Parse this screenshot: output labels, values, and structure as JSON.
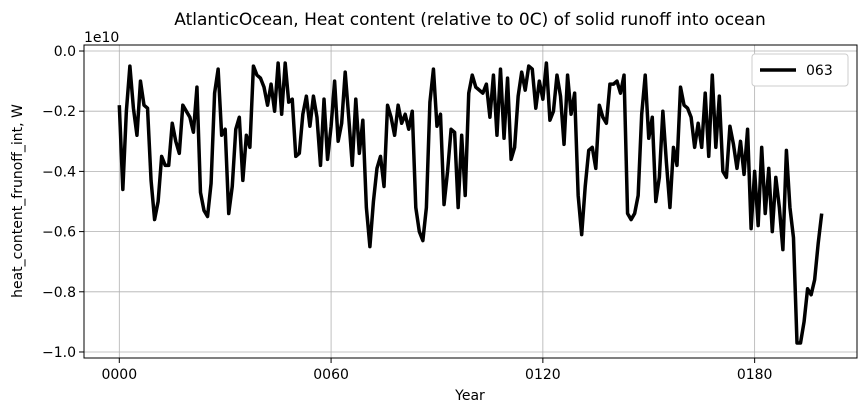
{
  "chart_data": {
    "type": "line",
    "title": "AtlanticOcean, Heat content (relative to 0C) of solid runoff into ocean",
    "xlabel": "Year",
    "ylabel": "heat_content_frunoff_int, W",
    "offset_text": "1e10",
    "x_ticks": [
      0,
      60,
      120,
      180
    ],
    "x_tick_labels": [
      "0000",
      "0060",
      "0120",
      "0180"
    ],
    "y_ticks": [
      0.0,
      -0.2,
      -0.4,
      -0.6,
      -0.8,
      -1.0
    ],
    "y_tick_labels": [
      "0.0",
      "−0.2",
      "−0.4",
      "−0.6",
      "−0.8",
      "−1.0"
    ],
    "xlim": [
      -10,
      209
    ],
    "ylim": [
      -1.02,
      0.02
    ],
    "grid": true,
    "legend_position": "top-right",
    "series": [
      {
        "name": "063",
        "color": "#000000",
        "x": [
          0,
          1,
          2,
          3,
          4,
          5,
          6,
          7,
          8,
          9,
          10,
          11,
          12,
          13,
          14,
          15,
          16,
          17,
          18,
          19,
          20,
          21,
          22,
          23,
          24,
          25,
          26,
          27,
          28,
          29,
          30,
          31,
          32,
          33,
          34,
          35,
          36,
          37,
          38,
          39,
          40,
          41,
          42,
          43,
          44,
          45,
          46,
          47,
          48,
          49,
          50,
          51,
          52,
          53,
          54,
          55,
          56,
          57,
          58,
          59,
          60,
          61,
          62,
          63,
          64,
          65,
          66,
          67,
          68,
          69,
          70,
          71,
          72,
          73,
          74,
          75,
          76,
          77,
          78,
          79,
          80,
          81,
          82,
          83,
          84,
          85,
          86,
          87,
          88,
          89,
          90,
          91,
          92,
          93,
          94,
          95,
          96,
          97,
          98,
          99,
          100,
          101,
          102,
          103,
          104,
          105,
          106,
          107,
          108,
          109,
          110,
          111,
          112,
          113,
          114,
          115,
          116,
          117,
          118,
          119,
          120,
          121,
          122,
          123,
          124,
          125,
          126,
          127,
          128,
          129,
          130,
          131,
          132,
          133,
          134,
          135,
          136,
          137,
          138,
          139,
          140,
          141,
          142,
          143,
          144,
          145,
          146,
          147,
          148,
          149,
          150,
          151,
          152,
          153,
          154,
          155,
          156,
          157,
          158,
          159,
          160,
          161,
          162,
          163,
          164,
          165,
          166,
          167,
          168,
          169,
          170,
          171,
          172,
          173,
          174,
          175,
          176,
          177,
          178,
          179,
          180,
          181,
          182,
          183,
          184,
          185,
          186,
          187,
          188,
          189,
          190,
          191,
          192,
          193,
          194,
          195,
          196,
          197,
          198,
          199
        ],
        "values": [
          -0.18,
          -0.46,
          -0.2,
          -0.05,
          -0.19,
          -0.28,
          -0.1,
          -0.18,
          -0.19,
          -0.43,
          -0.56,
          -0.5,
          -0.35,
          -0.38,
          -0.38,
          -0.24,
          -0.3,
          -0.34,
          -0.18,
          -0.2,
          -0.22,
          -0.27,
          -0.12,
          -0.47,
          -0.53,
          -0.55,
          -0.44,
          -0.14,
          -0.06,
          -0.28,
          -0.26,
          -0.54,
          -0.45,
          -0.26,
          -0.22,
          -0.43,
          -0.28,
          -0.32,
          -0.05,
          -0.08,
          -0.09,
          -0.12,
          -0.18,
          -0.11,
          -0.2,
          -0.04,
          -0.21,
          -0.04,
          -0.17,
          -0.16,
          -0.35,
          -0.34,
          -0.21,
          -0.15,
          -0.25,
          -0.15,
          -0.22,
          -0.38,
          -0.16,
          -0.36,
          -0.25,
          -0.1,
          -0.3,
          -0.24,
          -0.07,
          -0.22,
          -0.38,
          -0.16,
          -0.34,
          -0.23,
          -0.52,
          -0.65,
          -0.5,
          -0.39,
          -0.35,
          -0.45,
          -0.18,
          -0.22,
          -0.28,
          -0.18,
          -0.24,
          -0.21,
          -0.26,
          -0.2,
          -0.52,
          -0.6,
          -0.63,
          -0.52,
          -0.17,
          -0.06,
          -0.25,
          -0.21,
          -0.51,
          -0.4,
          -0.26,
          -0.27,
          -0.52,
          -0.28,
          -0.48,
          -0.14,
          -0.08,
          -0.12,
          -0.13,
          -0.14,
          -0.11,
          -0.22,
          -0.08,
          -0.28,
          -0.06,
          -0.29,
          -0.09,
          -0.36,
          -0.32,
          -0.15,
          -0.07,
          -0.13,
          -0.05,
          -0.06,
          -0.19,
          -0.1,
          -0.16,
          -0.04,
          -0.23,
          -0.2,
          -0.08,
          -0.15,
          -0.31,
          -0.08,
          -0.21,
          -0.14,
          -0.48,
          -0.61,
          -0.45,
          -0.33,
          -0.32,
          -0.39,
          -0.18,
          -0.22,
          -0.24,
          -0.11,
          -0.11,
          -0.1,
          -0.14,
          -0.08,
          -0.54,
          -0.56,
          -0.54,
          -0.48,
          -0.21,
          -0.08,
          -0.29,
          -0.22,
          -0.5,
          -0.42,
          -0.2,
          -0.37,
          -0.52,
          -0.32,
          -0.38,
          -0.12,
          -0.18,
          -0.19,
          -0.22,
          -0.32,
          -0.24,
          -0.32,
          -0.14,
          -0.35,
          -0.08,
          -0.32,
          -0.15,
          -0.4,
          -0.42,
          -0.25,
          -0.31,
          -0.39,
          -0.3,
          -0.41,
          -0.26,
          -0.59,
          -0.4,
          -0.58,
          -0.32,
          -0.54,
          -0.39,
          -0.6,
          -0.42,
          -0.52,
          -0.66,
          -0.33,
          -0.52,
          -0.62,
          -0.97,
          -0.97,
          -0.9,
          -0.79,
          -0.81,
          -0.76,
          -0.64,
          -0.54
        ]
      }
    ]
  }
}
